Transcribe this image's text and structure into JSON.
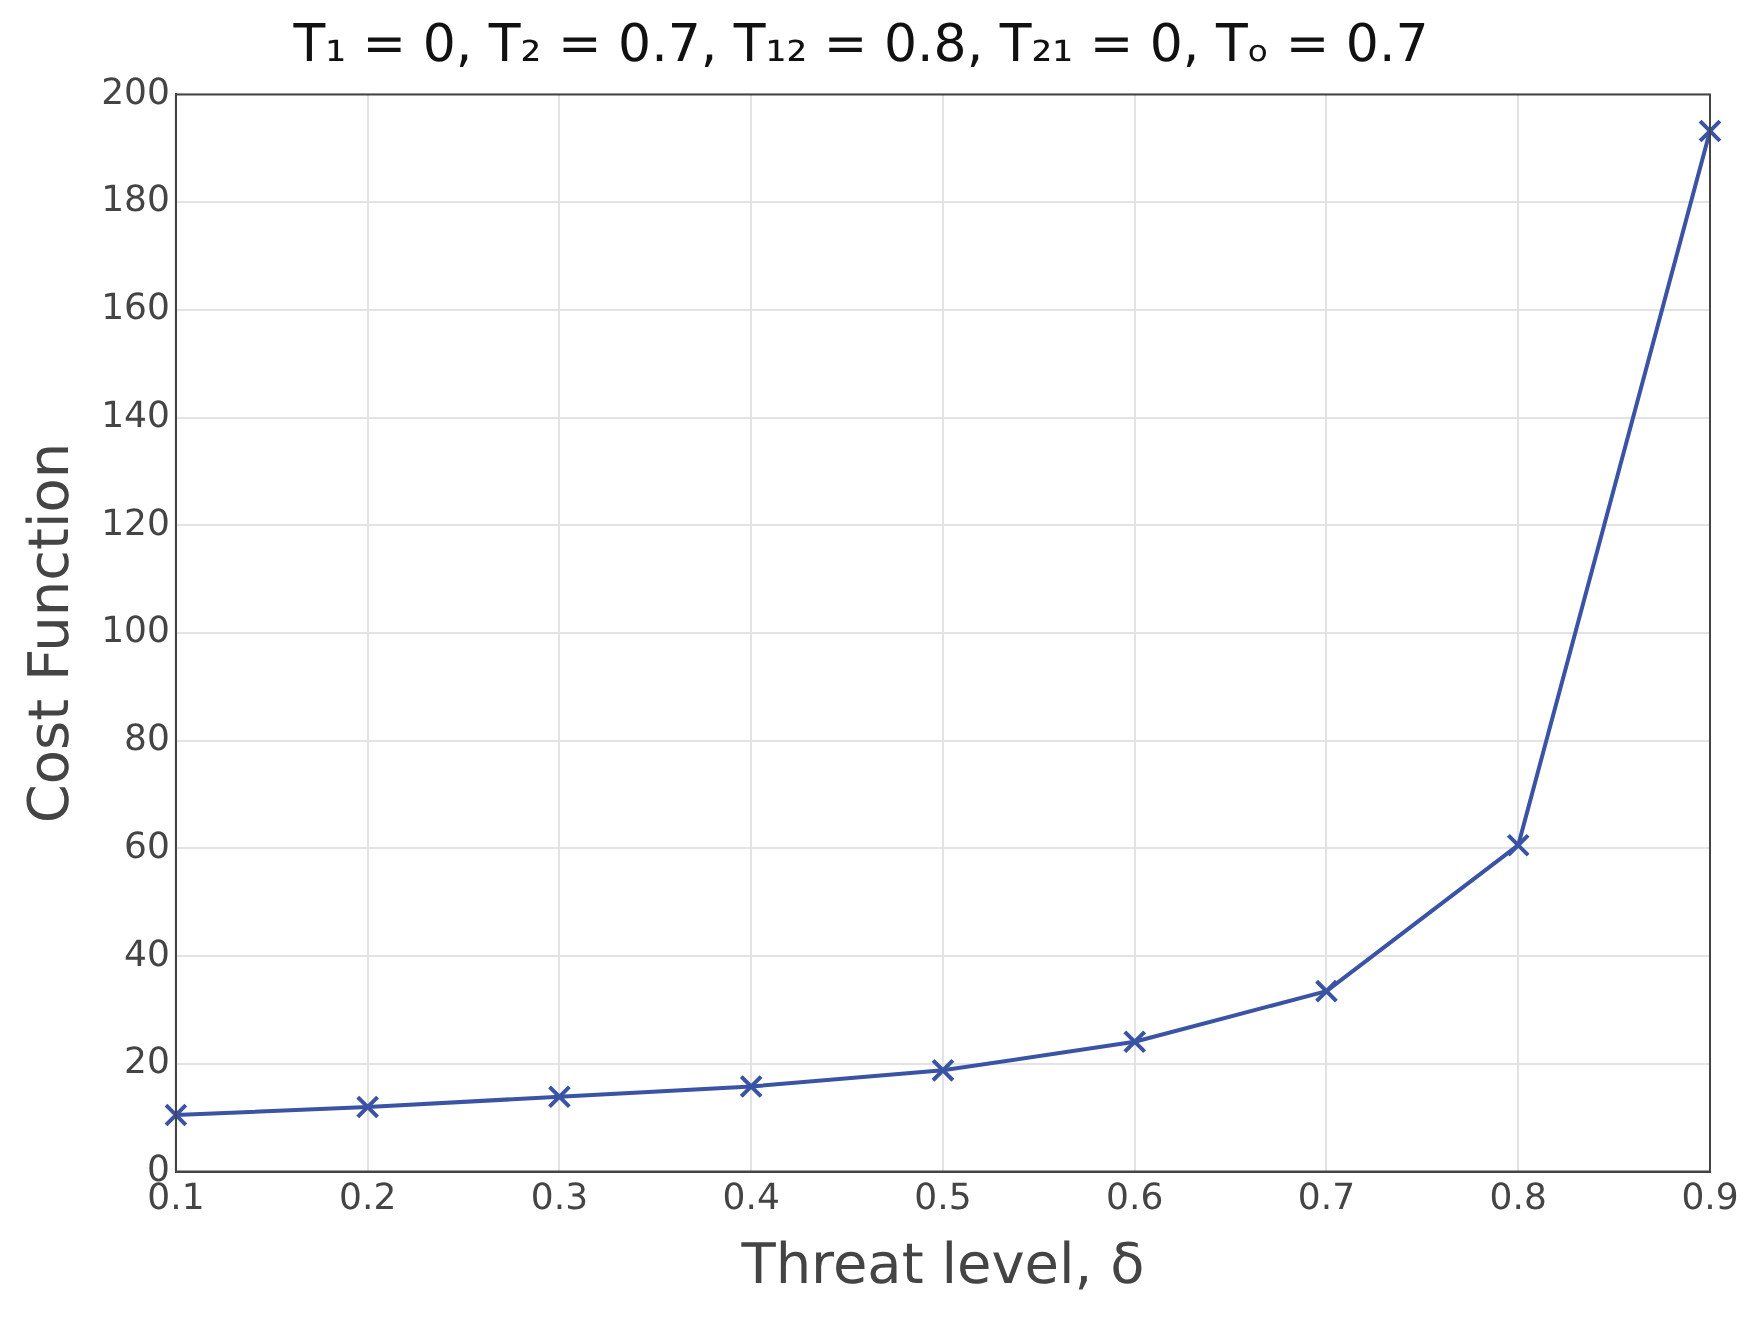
{
  "chart_data": {
    "type": "line",
    "title": "T₁ = 0, T₂ = 0.7, T₁₂ = 0.8, T₂₁ = 0, Tₒ = 0.7",
    "xlabel": "Threat level, δ",
    "ylabel": "Cost Function",
    "x": [
      0.1,
      0.2,
      0.3,
      0.4,
      0.5,
      0.6,
      0.7,
      0.8,
      0.9
    ],
    "series": [
      {
        "color": "#3a53a4",
        "values": [
          10.5,
          12,
          13.9,
          15.8,
          18.8,
          24.1,
          33.5,
          60.6,
          193.2
        ]
      }
    ],
    "xlim": [
      0.1,
      0.9
    ],
    "xticks": [
      0.1,
      0.2,
      0.3,
      0.4,
      0.5,
      0.6,
      0.7,
      0.8,
      0.9
    ],
    "ylim": [
      0,
      200
    ],
    "yticks": [
      0,
      20,
      40,
      60,
      80,
      100,
      120,
      140,
      160,
      180,
      200
    ],
    "grid": true,
    "legend": false,
    "marker": "cross",
    "line_style": "solid"
  }
}
